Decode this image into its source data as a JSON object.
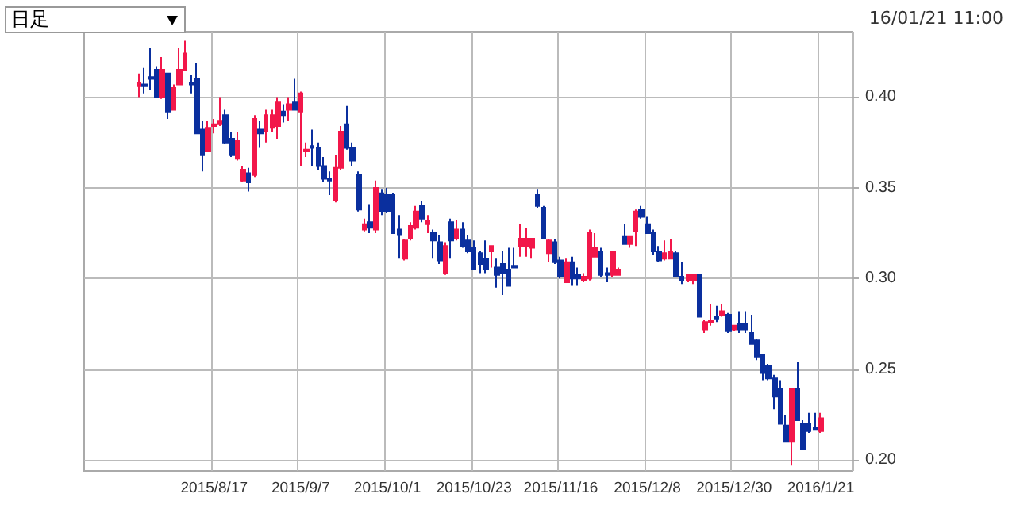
{
  "chart_data": {
    "type": "candlestick",
    "annotations": [
      "日足",
      "16/01/21 11:00"
    ],
    "categories": [
      null,
      null,
      null,
      null,
      null,
      null,
      null,
      null,
      null,
      null,
      null,
      null,
      null,
      null,
      null,
      null,
      null,
      null,
      null,
      null,
      null,
      null,
      "2015/8/17",
      null,
      null,
      null,
      null,
      null,
      null,
      null,
      null,
      null,
      null,
      null,
      null,
      null,
      null,
      "2015/9/7",
      null,
      null,
      null,
      null,
      null,
      null,
      null,
      null,
      null,
      null,
      null,
      null,
      null,
      null,
      "2015/10/1",
      null,
      null,
      null,
      null,
      null,
      null,
      null,
      null,
      null,
      null,
      null,
      null,
      null,
      null,
      "2015/10/23",
      null,
      null,
      null,
      null,
      null,
      null,
      null,
      null,
      null,
      null,
      null,
      null,
      null,
      null,
      "2015/11/16",
      null,
      null,
      null,
      null,
      null,
      null,
      null,
      null,
      null,
      null,
      null,
      null,
      null,
      null,
      "2015/12/8",
      null,
      null,
      null,
      null,
      null,
      null,
      null,
      null,
      null,
      null,
      null,
      null,
      null,
      null,
      "2015/12/30",
      null,
      null,
      null,
      null,
      null,
      null,
      null,
      null,
      null,
      null,
      null,
      null,
      null,
      null,
      "2016/1/21",
      null,
      null,
      null,
      null,
      null
    ],
    "colors": [
      null,
      null,
      null,
      null,
      null,
      null,
      null,
      null,
      null,
      "#f2174a",
      "#0a2f9e",
      "#0a2f9e",
      "#0a2f9e",
      "#f2174a",
      "#0a2f9e",
      "#f2174a",
      "#f2174a",
      "#f2174a",
      "#0a2f9e",
      "#0a2f9e",
      "#0a2f9e",
      "#f2174a",
      "#f2174a",
      "#f2174a",
      "#0a2f9e",
      "#0a2f9e",
      "#f2174a",
      "#f2174a",
      "#0a2f9e",
      "#f2174a",
      "#0a2f9e",
      "#f2174a",
      "#f2174a",
      "#f2174a",
      "#0a2f9e",
      "#f2174a",
      "#0a2f9e",
      "#f2174a",
      "#f2174a",
      "#0a2f9e",
      "#0a2f9e",
      "#0a2f9e",
      "#0a2f9e",
      "#f2174a",
      "#f2174a",
      "#0a2f9e",
      "#0a2f9e",
      "#0a2f9e",
      "#f2174a",
      "#0a2f9e",
      "#f2174a",
      "#0a2f9e",
      "#0a2f9e",
      "#0a2f9e",
      "#0a2f9e",
      "#f2174a",
      "#f2174a",
      "#f2174a",
      "#0a2f9e",
      "#f2174a",
      "#0a2f9e",
      "#0a2f9e",
      "#f2174a",
      "#0a2f9e",
      "#f2174a",
      "#0a2f9e",
      "#0a2f9e",
      "#0a2f9e",
      "#0a2f9e",
      "#0a2f9e",
      "#f2174a",
      "#0a2f9e",
      "#0a2f9e",
      "#0a2f9e",
      "#0a2f9e",
      "#f2174a",
      "#f2174a",
      "#f2174a",
      "#0a2f9e",
      "#0a2f9e",
      "#f2174a",
      "#0a2f9e",
      "#0a2f9e",
      "#f2174a",
      "#0a2f9e",
      "#0a2f9e",
      "#f2174a",
      "#f2174a",
      "#f2174a",
      "#0a2f9e",
      "#0a2f9e",
      "#f2174a",
      "#f2174a",
      "#0a2f9e",
      "#f2174a",
      "#f2174a",
      "#0a2f9e",
      "#0a2f9e",
      "#0a2f9e",
      "#0a2f9e",
      "#f2174a",
      "#f2174a",
      "#0a2f9e",
      "#0a2f9e",
      "#f2174a",
      "#f2174a",
      "#0a2f9e",
      "#f2174a",
      "#f2174a",
      "#0a2f9e",
      "#f2174a",
      "#0a2f9e",
      "#f2174a",
      "#0a2f9e",
      "#0a2f9e",
      "#0a2f9e",
      "#0a2f9e",
      "#0a2f9e",
      "#0a2f9e",
      "#0a2f9e",
      "#0a2f9e",
      "#0a2f9e",
      "#f2174a",
      "#0a2f9e",
      "#0a2f9e",
      "#0a2f9e",
      "#0a2f9e",
      "#f2174a",
      null,
      null,
      null,
      null,
      null
    ],
    "ohlc": [
      null,
      null,
      null,
      null,
      null,
      null,
      null,
      null,
      null,
      [
        0.406,
        0.413,
        0.4,
        0.408
      ],
      [
        0.407,
        0.416,
        0.402,
        0.406
      ],
      [
        0.411,
        0.427,
        0.404,
        0.41
      ],
      [
        0.415,
        0.417,
        0.4,
        0.4
      ],
      [
        0.4,
        0.422,
        0.399,
        0.415
      ],
      [
        0.413,
        0.413,
        0.388,
        0.392
      ],
      [
        0.393,
        0.407,
        0.393,
        0.405
      ],
      [
        0.407,
        0.427,
        0.407,
        0.415
      ],
      [
        0.415,
        0.431,
        0.415,
        0.424
      ],
      [
        0.408,
        0.412,
        0.402,
        0.407
      ],
      [
        0.41,
        0.419,
        0.38,
        0.38
      ],
      [
        0.382,
        0.387,
        0.359,
        0.368
      ],
      [
        0.37,
        0.387,
        0.37,
        0.383
      ],
      [
        0.384,
        0.388,
        0.38,
        0.385
      ],
      [
        0.385,
        0.4,
        0.384,
        0.387
      ],
      [
        0.39,
        0.393,
        0.374,
        0.375
      ],
      [
        0.377,
        0.381,
        0.367,
        0.368
      ],
      [
        0.366,
        0.381,
        0.365,
        0.376
      ],
      [
        0.354,
        0.362,
        0.353,
        0.36
      ],
      [
        0.358,
        0.361,
        0.348,
        0.353
      ],
      [
        0.357,
        0.39,
        0.356,
        0.388
      ],
      [
        0.382,
        0.387,
        0.372,
        0.38
      ],
      [
        0.381,
        0.393,
        0.375,
        0.39
      ],
      [
        0.383,
        0.393,
        0.381,
        0.39
      ],
      [
        0.384,
        0.4,
        0.377,
        0.397
      ],
      [
        0.392,
        0.396,
        0.386,
        0.39
      ],
      [
        0.393,
        0.4,
        0.387,
        0.396
      ],
      [
        0.397,
        0.41,
        0.393,
        0.393
      ],
      [
        0.392,
        0.403,
        0.362,
        0.402
      ],
      [
        0.37,
        0.375,
        0.367,
        0.371
      ],
      [
        0.373,
        0.382,
        0.362,
        0.372
      ],
      [
        0.372,
        0.375,
        0.36,
        0.362
      ],
      [
        0.362,
        0.367,
        0.353,
        0.355
      ],
      [
        0.355,
        0.359,
        0.346,
        0.354
      ],
      [
        0.343,
        0.368,
        0.342,
        0.361
      ],
      [
        0.361,
        0.384,
        0.36,
        0.381
      ],
      [
        0.385,
        0.395,
        0.371,
        0.372
      ],
      [
        0.372,
        0.375,
        0.362,
        0.365
      ],
      [
        0.357,
        0.359,
        0.337,
        0.338
      ],
      [
        0.327,
        0.333,
        0.326,
        0.33
      ],
      [
        0.331,
        0.341,
        0.325,
        0.328
      ],
      [
        0.327,
        0.354,
        0.325,
        0.35
      ],
      [
        0.347,
        0.349,
        0.335,
        0.337
      ],
      [
        0.346,
        0.35,
        0.336,
        0.337
      ],
      [
        0.346,
        0.347,
        0.325,
        0.325
      ],
      [
        0.327,
        0.335,
        0.311,
        0.324
      ],
      [
        0.311,
        0.322,
        0.31,
        0.321
      ],
      [
        0.322,
        0.331,
        0.321,
        0.329
      ],
      [
        0.328,
        0.34,
        0.327,
        0.337
      ],
      [
        0.34,
        0.343,
        0.331,
        0.333
      ],
      [
        0.33,
        0.335,
        0.325,
        0.332
      ],
      [
        0.325,
        0.327,
        0.311,
        0.321
      ],
      [
        0.32,
        0.324,
        0.308,
        0.31
      ],
      [
        0.303,
        0.32,
        0.302,
        0.318
      ],
      [
        0.331,
        0.333,
        0.311,
        0.321
      ],
      [
        0.322,
        0.332,
        0.321,
        0.327
      ],
      [
        0.327,
        0.331,
        0.317,
        0.318
      ],
      [
        0.321,
        0.324,
        0.314,
        0.315
      ],
      [
        0.317,
        0.321,
        0.305,
        0.305
      ],
      [
        0.314,
        0.315,
        0.303,
        0.308
      ],
      [
        0.311,
        0.321,
        0.303,
        0.305
      ],
      [
        0.315,
        0.318,
        0.306,
        0.318
      ],
      [
        0.306,
        0.311,
        0.295,
        0.302
      ],
      [
        0.308,
        0.315,
        0.291,
        0.303
      ],
      [
        0.305,
        0.317,
        0.296,
        0.296
      ],
      [
        0.307,
        0.317,
        0.306,
        0.306
      ],
      [
        0.318,
        0.33,
        0.312,
        0.322
      ],
      [
        0.318,
        0.328,
        0.312,
        0.322
      ],
      [
        0.317,
        0.322,
        0.311,
        0.322
      ],
      [
        0.346,
        0.349,
        0.339,
        0.34
      ],
      [
        0.339,
        0.34,
        0.322,
        0.322
      ],
      [
        0.314,
        0.322,
        0.309,
        0.321
      ],
      [
        0.32,
        0.322,
        0.308,
        0.309
      ],
      [
        0.31,
        0.312,
        0.3,
        0.301
      ],
      [
        0.298,
        0.311,
        0.298,
        0.309
      ],
      [
        0.309,
        0.312,
        0.296,
        0.3
      ],
      [
        0.302,
        0.306,
        0.296,
        0.3
      ],
      [
        0.299,
        0.303,
        0.298,
        0.301
      ],
      [
        0.3,
        0.327,
        0.299,
        0.325
      ],
      [
        0.312,
        0.325,
        0.312,
        0.317
      ],
      [
        0.315,
        0.317,
        0.301,
        0.302
      ],
      [
        0.303,
        0.306,
        0.298,
        0.302
      ],
      [
        0.302,
        0.315,
        0.301,
        0.315
      ],
      [
        0.302,
        0.306,
        0.302,
        0.305
      ],
      [
        0.323,
        0.33,
        0.319,
        0.319
      ],
      [
        0.319,
        0.323,
        0.317,
        0.323
      ],
      [
        0.326,
        0.338,
        0.318,
        0.337
      ],
      [
        0.338,
        0.34,
        0.333,
        0.334
      ],
      [
        0.33,
        0.334,
        0.325,
        0.325
      ],
      [
        0.325,
        0.327,
        0.313,
        0.315
      ],
      [
        0.315,
        0.318,
        0.309,
        0.31
      ],
      [
        0.311,
        0.321,
        0.31,
        0.314
      ],
      [
        0.311,
        0.322,
        0.311,
        0.315
      ],
      [
        0.314,
        0.315,
        0.301,
        0.301
      ],
      [
        0.301,
        0.309,
        0.297,
        0.299
      ],
      [
        0.299,
        0.302,
        0.298,
        0.302
      ],
      [
        0.299,
        0.302,
        0.297,
        0.302
      ],
      [
        0.302,
        0.302,
        0.279,
        0.279
      ],
      [
        0.272,
        0.277,
        0.27,
        0.276
      ],
      [
        0.276,
        0.286,
        0.274,
        0.277
      ],
      [
        0.279,
        0.285,
        0.276,
        0.278
      ],
      [
        0.28,
        0.286,
        0.279,
        0.282
      ],
      [
        0.28,
        0.281,
        0.27,
        0.271
      ],
      [
        0.272,
        0.274,
        0.271,
        0.274
      ],
      [
        0.275,
        0.282,
        0.27,
        0.272
      ],
      [
        0.275,
        0.282,
        0.27,
        0.272
      ],
      [
        0.27,
        0.28,
        0.264,
        0.264
      ],
      [
        0.266,
        0.267,
        0.255,
        0.257
      ],
      [
        0.258,
        0.258,
        0.244,
        0.248
      ],
      [
        0.252,
        0.253,
        0.244,
        0.245
      ],
      [
        0.245,
        0.247,
        0.228,
        0.235
      ],
      [
        0.239,
        0.244,
        0.22,
        0.22
      ],
      [
        0.219,
        0.225,
        0.21,
        0.21
      ],
      [
        0.21,
        0.239,
        0.197,
        0.239
      ],
      [
        0.239,
        0.254,
        0.222,
        0.222
      ],
      [
        0.22,
        0.222,
        0.206,
        0.206
      ],
      [
        0.22,
        0.226,
        0.215,
        0.216
      ],
      [
        0.218,
        0.226,
        0.217,
        0.217
      ],
      [
        0.216,
        0.226,
        0.215,
        0.223
      ],
      null,
      null,
      null,
      null,
      null
    ],
    "ylim": [
      0.194,
      0.436
    ],
    "yticks": [
      {
        "value": 0.2,
        "label": "0.20"
      },
      {
        "value": 0.25,
        "label": "0.25"
      },
      {
        "value": 0.3,
        "label": "0.30"
      },
      {
        "value": 0.35,
        "label": "0.35"
      },
      {
        "value": 0.4,
        "label": "0.40"
      }
    ],
    "grid": true
  }
}
